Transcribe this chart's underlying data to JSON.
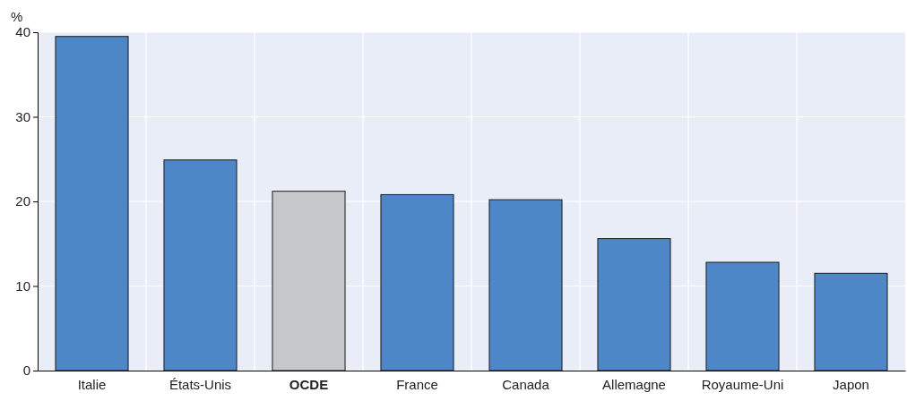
{
  "chart_data": {
    "type": "bar",
    "ylabel": "%",
    "categories": [
      "Italie",
      "États-Unis",
      "OCDE",
      "France",
      "Canada",
      "Allemagne",
      "Royaume-Uni",
      "Japon"
    ],
    "values": [
      39.5,
      24.9,
      21.2,
      20.8,
      20.2,
      15.6,
      12.8,
      11.5
    ],
    "colors": [
      "#4e87c8",
      "#4e87c8",
      "#c6c7c9",
      "#4e87c8",
      "#4e87c8",
      "#4e87c8",
      "#4e87c8",
      "#4e87c8"
    ],
    "ylim": [
      0,
      40
    ],
    "yticks": [
      0,
      10,
      20,
      30,
      40
    ],
    "grid": true
  }
}
